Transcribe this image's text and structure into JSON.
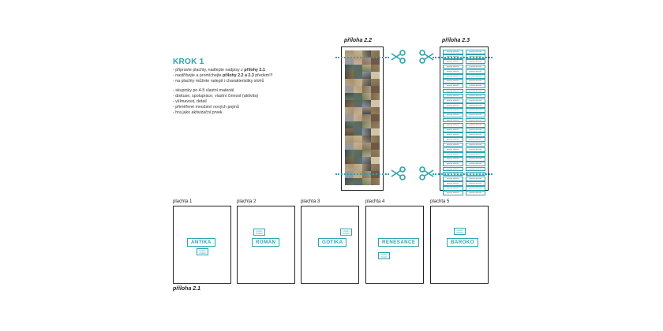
{
  "krok": {
    "title": "KROK 1",
    "lines": [
      [
        "- připravte plachty, nadlepte nadpisy z ",
        "přílohy 2.1",
        ""
      ],
      [
        "- nastříhejte a promíchejte ",
        "přílohy 2.2 a 2.3",
        " předem!!!"
      ],
      [
        "- na plachty můžete nalepit i charakteristiky slohů",
        "",
        ""
      ]
    ],
    "notes": [
      "- skupinky po 4-5 vlastní materiál",
      "- diskuse, spolupráce, vlastní činnost (aktivita)",
      "- všímavost, detail",
      "- přiměřené množství nových pojmů",
      "- hra jako aktivizační prvek"
    ]
  },
  "attachments": {
    "pictures_label": "příloha 2.2",
    "labels_label": "příloha 2.3",
    "sheets_label": "příloha 2.1",
    "label_cell_text": "popisky obrázku"
  },
  "colors": {
    "accent": "#2aa4b0",
    "outline": "#222222",
    "photo_palette": [
      "#7a6a52",
      "#a58f6c",
      "#5c6c7a",
      "#b8a88a",
      "#6e5a44",
      "#8c9aa6",
      "#c7b48e",
      "#4e4a44",
      "#9b7e5a",
      "#6b7d5a",
      "#b39b7a",
      "#3f4a55",
      "#d0c4aa",
      "#8a6e4e",
      "#5a6a4c",
      "#a7988a"
    ]
  },
  "icons": {
    "scissors": "scissors-icon"
  },
  "sheets": [
    {
      "title": "plachta 1",
      "style": "ANTIKA",
      "mini_text": "popisky obrázku"
    },
    {
      "title": "plachta 2",
      "style": "ROMÁN",
      "mini_text": "popisky obrázku"
    },
    {
      "title": "plachta 3",
      "style": "GOTIKA",
      "mini_text": "popisky obrázku"
    },
    {
      "title": "plachta 4",
      "style": "RENESANCE",
      "mini_text": "popisky obrázku"
    },
    {
      "title": "plachta 5",
      "style": "BAROKO",
      "mini_text": "popisky obrázku"
    }
  ]
}
